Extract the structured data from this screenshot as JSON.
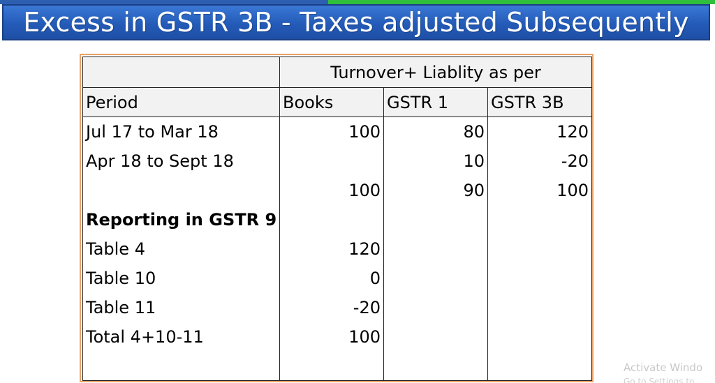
{
  "slide": {
    "title": "Excess in GSTR 3B - Taxes adjusted Subsequently"
  },
  "table": {
    "group_header": "Turnover+ Liablity as per",
    "columns": [
      "Period",
      "Books",
      "GSTR 1",
      "GSTR 3B"
    ],
    "rows": [
      {
        "period": "Jul 17 to Mar 18",
        "books": "100",
        "gstr1": "80",
        "gstr3b": "120"
      },
      {
        "period": "Apr 18 to Sept 18",
        "books": "",
        "gstr1": "10",
        "gstr3b": "-20"
      },
      {
        "period": "",
        "books": "100",
        "gstr1": "90",
        "gstr3b": "100"
      },
      {
        "period": "Reporting in GSTR 9",
        "books": "",
        "gstr1": "",
        "gstr3b": ""
      },
      {
        "period": "Table 4",
        "books": "120",
        "gstr1": "",
        "gstr3b": ""
      },
      {
        "period": "Table 10",
        "books": "0",
        "gstr1": "",
        "gstr3b": ""
      },
      {
        "period": "Table 11",
        "books": "-20",
        "gstr1": "",
        "gstr3b": ""
      },
      {
        "period": "Total 4+10-11",
        "books": "100",
        "gstr1": "",
        "gstr3b": ""
      },
      {
        "period": "",
        "books": "",
        "gstr1": "",
        "gstr3b": ""
      }
    ]
  },
  "watermark": {
    "line1": "Activate Windo",
    "line2": "Go to Settings to"
  },
  "colors": {
    "banner": "#245bb8",
    "table_border": "#e8a46a",
    "header_fill": "#f2f2f2"
  }
}
